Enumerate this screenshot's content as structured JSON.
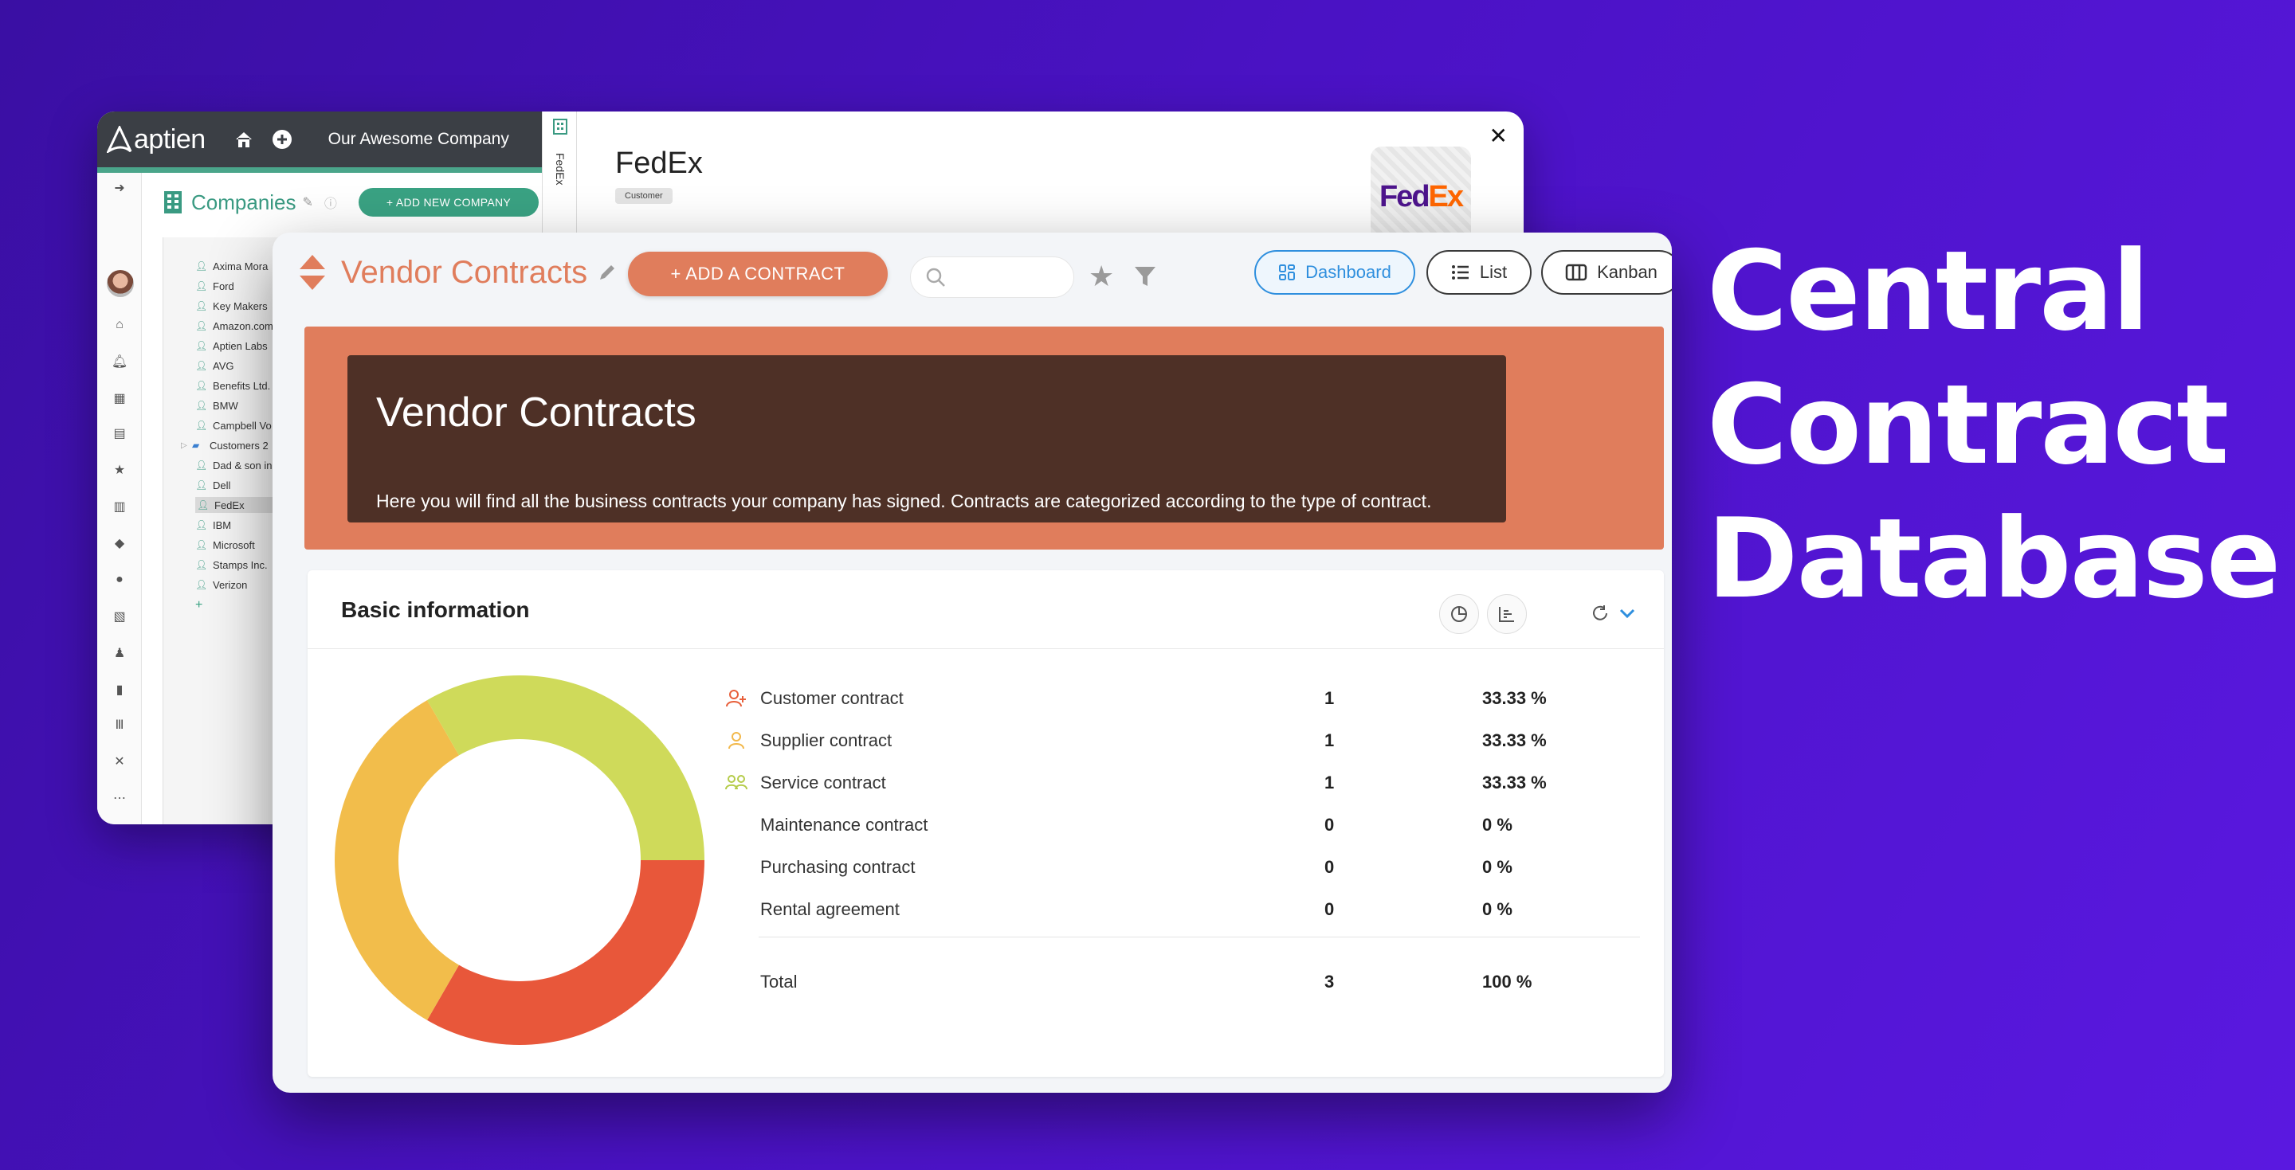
{
  "back_window": {
    "logo": "aptien",
    "company_name": "Our Awesome Company",
    "companies_title": "Companies",
    "add_company_label": "+ ADD NEW COMPANY",
    "tab_label": "FedEx",
    "detail_title": "FedEx",
    "detail_chip": "Customer",
    "logo_text_fed": "Fed",
    "logo_text_ex": "Ex",
    "tree": [
      "Axima Mora",
      "Ford",
      "Key Makers",
      "Amazon.com",
      "Aptien Labs",
      "AVG",
      "Benefits Ltd.",
      "BMW",
      "Campbell Vo",
      "Customers 2",
      "Dad & son in",
      "Dell",
      "FedEx",
      "IBM",
      "Microsoft",
      "Stamps Inc.",
      "Verizon"
    ],
    "tree_selected": "FedEx"
  },
  "front_window": {
    "title": "Vendor Contracts",
    "add_contract_label": "+ ADD A CONTRACT",
    "search_placeholder": "",
    "views": [
      {
        "label": "Dashboard",
        "icon": "dashboard-icon",
        "active": true
      },
      {
        "label": "List",
        "icon": "list-icon",
        "active": false
      },
      {
        "label": "Kanban",
        "icon": "kanban-icon",
        "active": false
      }
    ],
    "banner": {
      "title": "Vendor Contracts",
      "text": "Here you will find all the business contracts your company has signed. Contracts are categorized according to the type of contract."
    },
    "card": {
      "title": "Basic information",
      "rows": [
        {
          "label": "Customer contract",
          "count": "1",
          "percent": "33.33 %",
          "icon": "customer-contract-icon",
          "color": "#e8603c"
        },
        {
          "label": "Supplier contract",
          "count": "1",
          "percent": "33.33 %",
          "icon": "supplier-contract-icon",
          "color": "#f2b84b"
        },
        {
          "label": "Service contract",
          "count": "1",
          "percent": "33.33 %",
          "icon": "service-contract-icon",
          "color": "#cddb5a"
        },
        {
          "label": "Maintenance contract",
          "count": "0",
          "percent": "0 %"
        },
        {
          "label": "Purchasing contract",
          "count": "0",
          "percent": "0 %"
        },
        {
          "label": "Rental agreement",
          "count": "0",
          "percent": "0 %"
        }
      ],
      "total": {
        "label": "Total",
        "count": "3",
        "percent": "100 %"
      }
    }
  },
  "chart_data": {
    "type": "pie",
    "subtype": "donut",
    "categories": [
      "Customer contract",
      "Supplier contract",
      "Service contract"
    ],
    "values": [
      1,
      1,
      1
    ],
    "colors": [
      "#e8573a",
      "#f2bd4b",
      "#cfda5a"
    ]
  },
  "headline": [
    "Central",
    "Contract",
    "Database"
  ],
  "colors": {
    "accent": "#e07d5c",
    "banner_dark": "#4e3026",
    "aptien_green": "#3aa283",
    "active_blue": "#2f8fde"
  }
}
